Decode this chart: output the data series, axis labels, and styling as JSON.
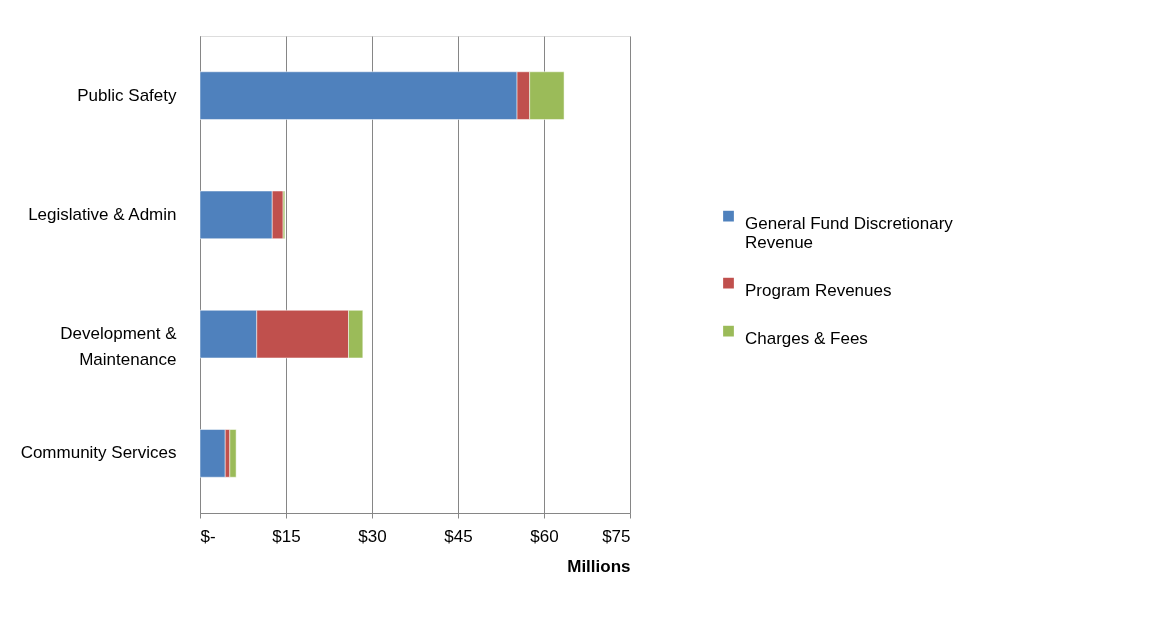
{
  "chart_data": {
    "type": "bar",
    "orientation": "horizontal",
    "stacked": true,
    "xlabel": "Millions",
    "categories": [
      "Public Safety",
      "Legislative & Admin",
      "Development & Maintenance",
      "Community Services"
    ],
    "series": [
      {
        "name": "General Fund Discretionary Revenue",
        "color": "#4f81bd",
        "values": [
          55.3,
          12.6,
          9.9,
          4.4
        ]
      },
      {
        "name": "Program Revenues",
        "color": "#c0504d",
        "values": [
          2.2,
          1.9,
          16.0,
          0.8
        ]
      },
      {
        "name": "Charges & Fees",
        "color": "#9bbb59",
        "values": [
          6.0,
          0.3,
          2.5,
          1.1
        ]
      }
    ],
    "xlim": [
      0,
      75
    ],
    "xticks": [
      {
        "value": 0,
        "label": "$-"
      },
      {
        "value": 15,
        "label": "$15"
      },
      {
        "value": 30,
        "label": "$30"
      },
      {
        "value": 45,
        "label": "$45"
      },
      {
        "value": 60,
        "label": "$60"
      },
      {
        "value": 75,
        "label": "$75"
      }
    ],
    "grid": "x",
    "legend": "right"
  }
}
